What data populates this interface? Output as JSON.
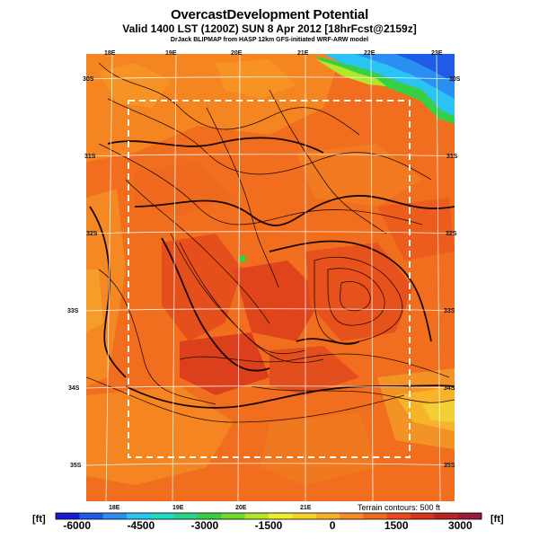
{
  "header": {
    "title": "OvercastDevelopment Potential",
    "subtitle": "Valid 1400 LST (1200Z) SUN 8 Apr 2012 [18hrFcst@2159z]",
    "credit": "DrJack BLIPMAP from HASP 12km GFS-initiated WRF-ARW model"
  },
  "map": {
    "top_longitudes": [
      "18E",
      "19E",
      "20E",
      "21E",
      "22E",
      "23E"
    ],
    "bottom_longitudes": [
      "18E",
      "19E",
      "20E",
      "21E"
    ],
    "left_latitudes": [
      "30S",
      "31S",
      "32S",
      "33S",
      "34S",
      "35S"
    ],
    "right_latitudes": [
      "30S",
      "31S",
      "32S",
      "33S",
      "34S",
      "35S"
    ],
    "terrain_note": "Terrain contours: 500 ft",
    "dashed_box": "forecast region"
  },
  "colorbar": {
    "unit_left": "[ft]",
    "unit_right": "[ft]",
    "ticks": [
      "-6000",
      "-4500",
      "-3000",
      "-1500",
      "0",
      "1500",
      "3000"
    ],
    "min": -6500,
    "max": 3500,
    "colors": [
      "#1a1ad0",
      "#1f5be6",
      "#2a8ff0",
      "#29c3f4",
      "#22d8c6",
      "#28d38a",
      "#36d045",
      "#6edb2a",
      "#b3e62b",
      "#e9ee2d",
      "#f8d02c",
      "#f8b029",
      "#f58d24",
      "#f06a1e",
      "#ec4a1c",
      "#d8331c",
      "#b82421",
      "#9a1c3b"
    ]
  }
}
